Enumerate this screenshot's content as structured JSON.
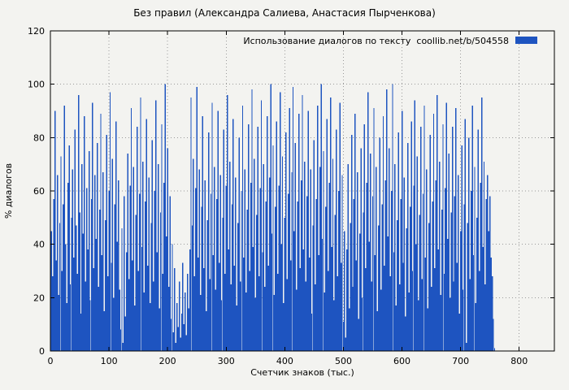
{
  "colors": {
    "bar": "#1e54c0",
    "background": "#f3f3f0",
    "grid": "#9a9a9a",
    "axis": "#000000"
  },
  "legend": {
    "label": "Использование диалогов по тексту  coollib.net/b/504558"
  },
  "chart_data": {
    "type": "bar",
    "title": "Без правил (Александра Салиева, Анастасия Пырченкова)",
    "xlabel": "Счетчик знаков (тыс.)",
    "ylabel": "% диалогов",
    "xlim": [
      0,
      860
    ],
    "ylim": [
      0,
      120
    ],
    "xticks": [
      0,
      100,
      200,
      300,
      400,
      500,
      600,
      700,
      800
    ],
    "yticks": [
      0,
      20,
      40,
      60,
      80,
      100,
      120
    ],
    "x_start": 0,
    "x_step": 2,
    "values": [
      12,
      45,
      28,
      57,
      90,
      34,
      66,
      21,
      48,
      73,
      30,
      55,
      92,
      40,
      18,
      63,
      77,
      25,
      50,
      68,
      35,
      83,
      47,
      29,
      96,
      52,
      14,
      70,
      44,
      88,
      26,
      61,
      38,
      75,
      19,
      57,
      93,
      31,
      66,
      42,
      78,
      24,
      53,
      89,
      36,
      67,
      15,
      49,
      81,
      28,
      60,
      97,
      33,
      72,
      20,
      55,
      86,
      41,
      64,
      23,
      8,
      46,
      3,
      58,
      13,
      37,
      74,
      27,
      62,
      91,
      34,
      69,
      17,
      51,
      84,
      30,
      59,
      95,
      39,
      71,
      22,
      56,
      87,
      32,
      65,
      18,
      48,
      79,
      26,
      60,
      94,
      37,
      70,
      16,
      52,
      85,
      29,
      63,
      100,
      43,
      76,
      24,
      58,
      12,
      40,
      7,
      31,
      3,
      18,
      9,
      26,
      5,
      14,
      33,
      10,
      22,
      6,
      29,
      16,
      38,
      95,
      47,
      72,
      28,
      61,
      99,
      35,
      68,
      21,
      54,
      88,
      31,
      64,
      15,
      49,
      82,
      27,
      59,
      93,
      36,
      69,
      23,
      57,
      90,
      33,
      66,
      19,
      50,
      83,
      29,
      62,
      96,
      38,
      71,
      25,
      55,
      87,
      32,
      65,
      17,
      48,
      80,
      26,
      60,
      92,
      35,
      68,
      22,
      53,
      85,
      30,
      63,
      98,
      39,
      72,
      20,
      51,
      84,
      28,
      61,
      94,
      37,
      70,
      24,
      56,
      88,
      32,
      65,
      100,
      44,
      77,
      21,
      54,
      86,
      29,
      62,
      97,
      40,
      73,
      18,
      50,
      82,
      27,
      59,
      91,
      34,
      67,
      99,
      45,
      78,
      23,
      56,
      89,
      31,
      64,
      96,
      38,
      71,
      26,
      58,
      90,
      35,
      68,
      14,
      47,
      79,
      25,
      57,
      92,
      36,
      69,
      100,
      42,
      75,
      22,
      54,
      87,
      30,
      63,
      95,
      39,
      72,
      19,
      51,
      83,
      28,
      60,
      93,
      33,
      66,
      11,
      45,
      5,
      38,
      70,
      16,
      48,
      81,
      24,
      57,
      89,
      34,
      67,
      12,
      44,
      76,
      20,
      52,
      85,
      31,
      63,
      97,
      41,
      74,
      26,
      58,
      91,
      36,
      69,
      15,
      47,
      80,
      23,
      55,
      88,
      32,
      64,
      98,
      43,
      76,
      28,
      60,
      100,
      37,
      70,
      17,
      49,
      82,
      25,
      57,
      90,
      33,
      65,
      13,
      46,
      78,
      22,
      54,
      86,
      30,
      62,
      94,
      40,
      73,
      19,
      51,
      84,
      27,
      59,
      92,
      35,
      68,
      16,
      48,
      81,
      24,
      56,
      89,
      31,
      64,
      96,
      38,
      71,
      21,
      53,
      85,
      29,
      61,
      93,
      42,
      74,
      20,
      52,
      84,
      26,
      58,
      91,
      33,
      66,
      14,
      45,
      77,
      23,
      55,
      87,
      3,
      48,
      80,
      27,
      60,
      92,
      36,
      69,
      18,
      50,
      83,
      30,
      63,
      95,
      39,
      71,
      25,
      57,
      66,
      45,
      58,
      35,
      28,
      12,
      1
    ]
  }
}
